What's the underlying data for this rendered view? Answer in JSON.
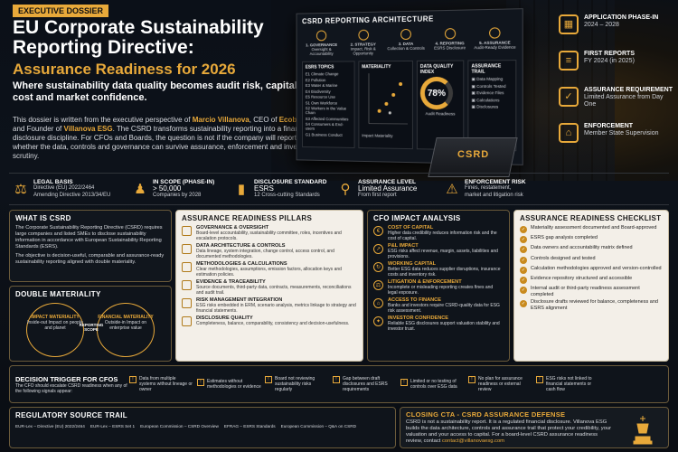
{
  "header": {
    "tag": "EXECUTIVE DOSSIER",
    "title": "EU Corporate Sustainability Reporting Directive:",
    "subtitle": "Assurance Readiness for 2026",
    "tagline": "Where sustainability data quality becomes audit risk, capital cost and market confidence.",
    "intro_a": "This dossier is written from the executive perspective of",
    "intro_name": "Marcio Villanova",
    "intro_b": ", CEO of",
    "intro_co1": "Ecobraz",
    "intro_c": "and Founder of",
    "intro_co2": "Villanova ESG",
    "intro_d": ". The CSRD transforms sustainability reporting into a financial disclosure discipline. For CFOs and Boards, the question is not if the company will report, but whether the data, controls and governance can survive assurance, enforcement and investor scrutiny."
  },
  "architecture": {
    "title": "CSRD REPORTING ARCHITECTURE",
    "steps": [
      "1. GOVERNANCE",
      "2. STRATEGY",
      "3. DATA",
      "4. REPORTING",
      "5. ASSURANCE"
    ],
    "step_subs": [
      "Oversight & Accountability",
      "Impact, Risk & Opportunity",
      "Collection & Controls",
      "ESRS Disclosure",
      "Audit-Ready Evidence"
    ],
    "esrs_title": "ESRS TOPICS",
    "esrs_topics": [
      "E1 Climate Change",
      "E2 Pollution",
      "E3 Water & Marine",
      "E4 Biodiversity",
      "E5 Resource Use",
      "S1 Own Workforce",
      "S2 Workers in the Value Chain",
      "S3 Affected Communities",
      "S4 Consumers & End-users",
      "G1 Business Conduct"
    ],
    "materiality_title": "MATERIALITY",
    "materiality_x": "Impact Materiality",
    "materiality_y": "Financial Materiality",
    "dq_title": "DATA QUALITY INDEX",
    "dq_value": "78%",
    "dq_label": "Audit Readiness",
    "trail_title": "ASSURANCE TRAIL",
    "trail": [
      "Data Mapping",
      "Controls Tested",
      "Evidence Files",
      "Calculations",
      "Disclosures"
    ]
  },
  "book_label": "CSRD",
  "facts": [
    {
      "title": "APPLICATION PHASE-IN",
      "text": "2024 – 2028",
      "icon": "calendar-icon"
    },
    {
      "title": "FIRST REPORTS",
      "text": "FY 2024 (in 2025)",
      "icon": "report-icon"
    },
    {
      "title": "ASSURANCE REQUIREMENT",
      "text": "Limited Assurance from Day One",
      "icon": "shield-icon"
    },
    {
      "title": "ENFORCEMENT",
      "text": "Member State Supervision",
      "icon": "bank-icon"
    }
  ],
  "stats": [
    {
      "title": "LEGAL BASIS",
      "value": "Directive (EU) 2022/2464",
      "sub": "Amending Directive 2013/34/EU"
    },
    {
      "title": "IN SCOPE (PHASE-IN)",
      "value": "> 50,000",
      "sub": "Companies by 2028"
    },
    {
      "title": "DISCLOSURE STANDARD",
      "value": "ESRS",
      "sub": "12 Cross-cutting Standards"
    },
    {
      "title": "ASSURANCE LEVEL",
      "value": "Limited Assurance",
      "sub": "From first report"
    },
    {
      "title": "ENFORCEMENT RISK",
      "value": "Fines, restatement,",
      "sub": "market and litigation risk"
    }
  ],
  "what": {
    "title": "WHAT IS CSRD",
    "p1": "The Corporate Sustainability Reporting Directive (CSRD) requires large companies and listed SMEs to disclose sustainability information in accordance with European Sustainability Reporting Standards (ESRS).",
    "p2": "The objective is decision-useful, comparable and assurance-ready sustainability reporting aligned with double materiality."
  },
  "dm": {
    "title": "DOUBLE MATERIALITY",
    "left_title": "IMPACT MATERIALITY",
    "left_text": "Inside-out Impact on people and planet",
    "mid": "REPORTING SCOPE",
    "right_title": "FINANCIAL MATERIALITY",
    "right_text": "Outside-in Impact on enterprise value"
  },
  "pillars": {
    "title": "ASSURANCE READINESS PILLARS",
    "items": [
      {
        "t": "GOVERNANCE & OVERSIGHT",
        "d": "Board-level accountability, sustainability committee, roles, incentives and escalation protocols."
      },
      {
        "t": "DATA ARCHITECTURE & CONTROLS",
        "d": "Data lineage, system integration, change control, access control, and documented methodologies."
      },
      {
        "t": "METHODOLOGIES & CALCULATIONS",
        "d": "Clear methodologies, assumptions, emission factors, allocation keys and estimation policies."
      },
      {
        "t": "EVIDENCE & TRACEABILITY",
        "d": "Source documents, third-party data, contracts, measurements, reconciliations and audit trail."
      },
      {
        "t": "RISK MANAGEMENT INTEGRATION",
        "d": "ESG risks embedded in ERM, scenario analysis, metrics linkage to strategy and financial statements."
      },
      {
        "t": "DISCLOSURE QUALITY",
        "d": "Completeness, balance, comparability, consistency and decision-usefulness."
      }
    ]
  },
  "cfo": {
    "title": "CFO IMPACT ANALYSIS",
    "items": [
      {
        "t": "COST OF CAPITAL",
        "d": "Higher data credibility reduces information risk and the cost of capital."
      },
      {
        "t": "P&L IMPACT",
        "d": "ESG risks affect revenue, margin, assets, liabilities and provisions."
      },
      {
        "t": "WORKING CAPITAL",
        "d": "Better ESG data reduces supplier disruptions, insurance costs and inventory risk."
      },
      {
        "t": "LITIGATION & ENFORCEMENT",
        "d": "Incomplete or misleading reporting creates fines and legal exposure."
      },
      {
        "t": "ACCESS TO FINANCE",
        "d": "Banks and investors require CSRD-quality data for ESG risk assessment."
      },
      {
        "t": "INVESTOR CONFIDENCE",
        "d": "Reliable ESG disclosures support valuation stability and investor trust."
      }
    ]
  },
  "checklist": {
    "title": "ASSURANCE READINESS CHECKLIST",
    "items": [
      "Materiality assessment documented and Board-approved",
      "ESRS gap analysis completed",
      "Data owners and accountability matrix defined",
      "Controls designed and tested",
      "Calculation methodologies approved and version-controlled",
      "Evidence repository structured and accessible",
      "Internal audit or third-party readiness assessment completed",
      "Disclosure drafts reviewed for balance, completeness and ESRS alignment"
    ]
  },
  "trigger": {
    "title": "DECISION TRIGGER FOR CFOS",
    "text": "The CFO should escalate CSRD readiness when any of the following signals appear:",
    "items": [
      "Data from multiple systems without lineage or owner",
      "Estimates without methodologies or evidence",
      "Board not reviewing sustainability risks regularly",
      "Gap between draft disclosures and ESRS requirements",
      "Limited or no testing of controls over ESG data",
      "No plan for assurance readiness or external review",
      "ESG risks not linked to financial statements or cash flow"
    ]
  },
  "sources": {
    "title": "REGULATORY SOURCE TRAIL",
    "items": [
      "EUR-Lex – Directive (EU) 2022/2464",
      "EUR-Lex – ESRS Set 1",
      "European Commission – CSRD Overview",
      "EFRAG – ESRS Standards",
      "European Commission – Q&A on CSRD"
    ]
  },
  "cta": {
    "title": "CLOSING CTA - CSRD ASSURANCE DEFENSE",
    "text": "CSRD is not a sustainability report. It is a regulated financial disclosure. Villanova ESG builds the data architecture, controls and assurance trail that protect your credibility, your valuation and your access to capital.",
    "contact_pre": "For a board-level CSRD assurance readiness review, contact",
    "email": "contact@villanovaesg.com"
  }
}
